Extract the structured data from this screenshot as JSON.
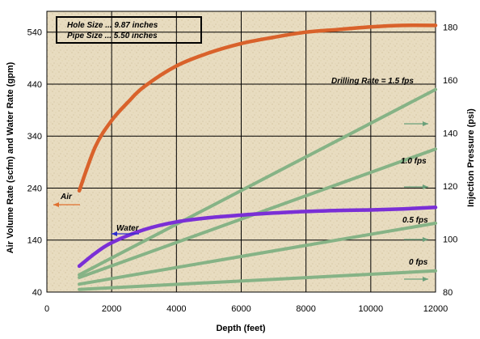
{
  "chart_data": {
    "type": "line",
    "title": "",
    "xlabel": "Depth (feet)",
    "ylabel_left": "Air Volume Rate (scfm) and Water Rate (gpm)",
    "ylabel_right": "Injection Pressure (psi)",
    "xlim": [
      0,
      12000
    ],
    "ylim_left": [
      40,
      580
    ],
    "ylim_right": [
      80,
      186
    ],
    "x_ticks": [
      0,
      2000,
      4000,
      6000,
      8000,
      10000,
      12000
    ],
    "y_ticks_left": [
      40,
      140,
      240,
      340,
      440,
      540
    ],
    "y_ticks_right": [
      80,
      100,
      120,
      140,
      160,
      180
    ],
    "grid": true,
    "colors": {
      "air": "#d9622b",
      "water": "#7a2fd6",
      "pressure": "#86b386",
      "grid": "#000000",
      "background": "#e8dcc0",
      "arrow_air": "#e0702f",
      "arrow_water": "#2a2acc",
      "arrow_pressure": "#6aa07a"
    },
    "legend": {
      "hole_size": "Hole Size  ...  9.87 inches",
      "pipe_size": "Pipe Size  ...  5.50 inches"
    },
    "series": [
      {
        "name": "Air",
        "axis": "left",
        "x": [
          1000,
          1500,
          2000,
          2500,
          3000,
          4000,
          5000,
          6000,
          7000,
          8000,
          9000,
          10000,
          11000,
          12000
        ],
        "values": [
          235,
          320,
          370,
          405,
          435,
          475,
          500,
          518,
          530,
          540,
          545,
          550,
          553,
          553
        ]
      },
      {
        "name": "Water",
        "axis": "left",
        "x": [
          1000,
          1500,
          2000,
          3000,
          4000,
          5000,
          6000,
          7000,
          8000,
          9000,
          10000,
          11000,
          12000
        ],
        "values": [
          90,
          115,
          135,
          160,
          175,
          183,
          188,
          192,
          195,
          197,
          198,
          200,
          203
        ]
      }
    ],
    "pressure_curves": [
      {
        "label": "Drilling Rate =  1.5 fps",
        "axis": "right",
        "x": [
          1000,
          12000
        ],
        "values": [
          86.5,
          156.5
        ]
      },
      {
        "label": "1.0 fps",
        "axis": "right",
        "x": [
          1000,
          12000
        ],
        "values": [
          85.5,
          134
        ]
      },
      {
        "label": "0.5 fps",
        "axis": "right",
        "x": [
          1000,
          12000
        ],
        "values": [
          83,
          106
        ]
      },
      {
        "label": "0 fps",
        "axis": "right",
        "x": [
          1000,
          12000
        ],
        "values": [
          81,
          88
        ]
      }
    ],
    "annotations": [
      {
        "text": "Air",
        "series": "Air"
      },
      {
        "text": "Water",
        "series": "Water"
      }
    ]
  }
}
